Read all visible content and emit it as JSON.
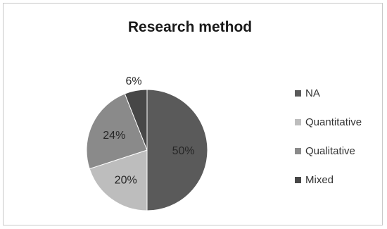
{
  "chart_data": {
    "type": "pie",
    "title": "Research method",
    "categories": [
      "NA",
      "Quantitative",
      "Qualitative",
      "Mixed"
    ],
    "values": [
      50,
      20,
      24,
      6
    ],
    "value_labels": [
      "50%",
      "20%",
      "24%",
      "6%"
    ],
    "colors": [
      "#5a5a5a",
      "#bdbdbd",
      "#8a8a8a",
      "#474747"
    ],
    "legend": "right",
    "start_angle": "12 o'clock",
    "direction": "clockwise"
  }
}
